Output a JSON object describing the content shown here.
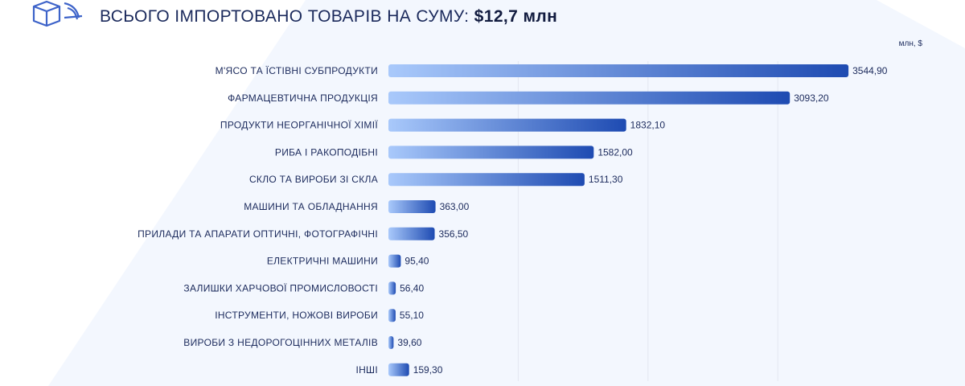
{
  "header": {
    "title_prefix": "ВСЬОГО ІМПОРТОВАНО ТОВАРІВ НА СУМУ:",
    "title_total": "$12,7 млн"
  },
  "colors": {
    "bar_start": "#a9c9fb",
    "bar_end": "#1e4bb2",
    "text": "#1b2a5c",
    "gridline": "#e3e7f0"
  },
  "chart_data": {
    "type": "bar",
    "orientation": "horizontal",
    "unit_label": "млн, $",
    "categories": [
      "М'ЯСО ТА ЇСТІВНІ СУБПРОДУКТИ",
      "ФАРМАЦЕВТИЧНА ПРОДУКЦІЯ",
      "ПРОДУКТИ НЕОРГАНІЧНОЇ ХІМІЇ",
      "РИБА І РАКОПОДІБНІ",
      "СКЛО ТА ВИРОБИ ЗІ СКЛА",
      "МАШИНИ ТА ОБЛАДНАННЯ",
      "ПРИЛАДИ ТА АПАРАТИ ОПТИЧНІ, ФОТОГРАФІЧНІ",
      "ЕЛЕКТРИЧНІ МАШИНИ",
      "ЗАЛИШКИ ХАРЧОВОЇ ПРОМИСЛОВОСТІ",
      "ІНСТРУМЕНТИ, НОЖОВІ ВИРОБИ",
      "ВИРОБИ З НЕДОРОГОЦІННИХ МЕТАЛІВ",
      "ІНШІ"
    ],
    "values": [
      3544.9,
      3093.2,
      1832.1,
      1582.0,
      1511.3,
      363.0,
      356.5,
      95.4,
      56.4,
      55.1,
      39.6,
      159.3
    ],
    "value_labels": [
      "3544,90",
      "3093,20",
      "1832,10",
      "1582,00",
      "1511,30",
      "363,00",
      "356,50",
      "95,40",
      "56,40",
      "55,10",
      "39,60",
      "159,30"
    ],
    "xlim": [
      0,
      3600
    ],
    "gridlines_at": [
      1000,
      2000,
      3000
    ],
    "grid": true,
    "legend": "none"
  }
}
